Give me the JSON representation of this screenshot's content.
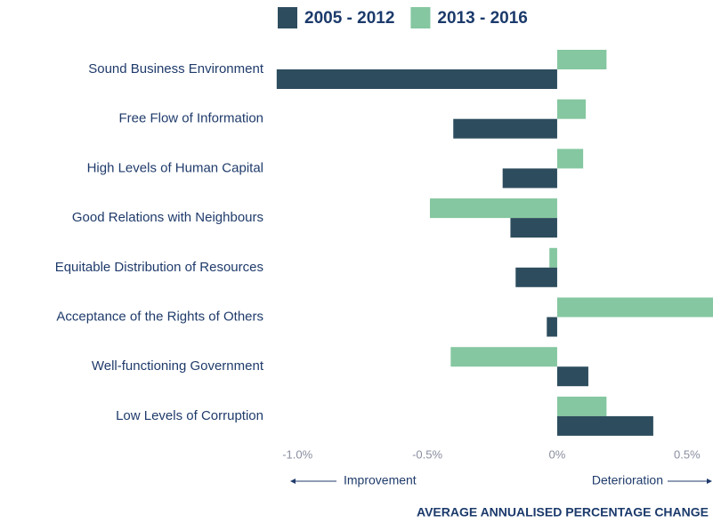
{
  "chart_data": {
    "type": "barh",
    "categories": [
      "Sound Business Environment",
      "Free Flow of Information",
      "High Levels of Human Capital",
      "Good Relations with Neighbours",
      "Equitable Distribution of Resources",
      "Acceptance of the Rights of Others",
      "Well-functioning Government",
      "Low Levels of Corruption"
    ],
    "series": [
      {
        "name": "2005 - 2012",
        "color": "#2d4d5e",
        "values": [
          -1.08,
          -0.4,
          -0.21,
          -0.18,
          -0.16,
          -0.04,
          0.12,
          0.37
        ]
      },
      {
        "name": "2013 - 2016",
        "color": "#85c7a0",
        "values": [
          0.19,
          0.11,
          0.1,
          -0.49,
          -0.03,
          0.6,
          -0.41,
          0.19
        ]
      }
    ],
    "xlim": [
      -1.1,
      0.6
    ],
    "xticks": [
      {
        "value": -1.0,
        "label": "-1.0%"
      },
      {
        "value": -0.5,
        "label": "-0.5%"
      },
      {
        "value": 0,
        "label": "0%"
      },
      {
        "value": 0.5,
        "label": "0.5%"
      }
    ],
    "annotations": [
      "Improvement",
      "Deterioration"
    ],
    "x_label": "AVERAGE ANNUALISED PERCENTAGE CHANGE",
    "legend": "top"
  }
}
